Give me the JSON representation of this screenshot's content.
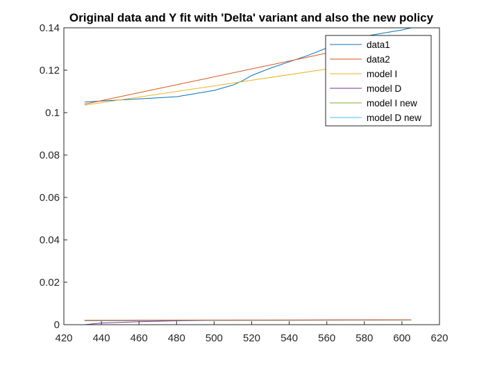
{
  "chart_data": {
    "type": "line",
    "title": "Original data and Y fit with 'Delta' variant and also the new policy",
    "xlabel": "",
    "ylabel": "",
    "xlim": [
      420,
      620
    ],
    "ylim": [
      0,
      0.14
    ],
    "xticks": [
      420,
      440,
      460,
      480,
      500,
      520,
      540,
      560,
      580,
      600,
      620
    ],
    "yticks": [
      0,
      0.02,
      0.04,
      0.06,
      0.08,
      0.1,
      0.12,
      0.14
    ],
    "ytick_labels": [
      "0",
      "0.02",
      "0.04",
      "0.06",
      "0.08",
      "0.1",
      "0.12",
      "0.14"
    ],
    "grid": false,
    "legend_position": "top-right",
    "series": [
      {
        "name": "data1",
        "color": "#0072BD",
        "x": [
          431,
          440,
          460,
          480,
          490,
          500,
          510,
          515,
          520,
          530,
          540,
          550,
          560,
          570,
          580,
          590,
          600,
          605
        ],
        "y": [
          0.105,
          0.1055,
          0.1065,
          0.1075,
          0.109,
          0.1105,
          0.113,
          0.115,
          0.1175,
          0.121,
          0.124,
          0.127,
          0.1305,
          0.1335,
          0.136,
          0.1375,
          0.139,
          0.14
        ]
      },
      {
        "name": "data2",
        "color": "#D95319",
        "x": [
          431,
          605
        ],
        "y": [
          0.104,
          0.1365
        ]
      },
      {
        "name": "model I",
        "color": "#EDB120",
        "x": [
          431,
          605
        ],
        "y": [
          0.1035,
          0.1265
        ]
      },
      {
        "name": "model D",
        "color": "#7E2F8E",
        "x": [
          431,
          440,
          460,
          480,
          500,
          520,
          540,
          560,
          580,
          605
        ],
        "y": [
          0.0,
          0.0008,
          0.0014,
          0.0018,
          0.002,
          0.0021,
          0.0021,
          0.0022,
          0.0022,
          0.0023
        ]
      },
      {
        "name": "model I new",
        "color": "#77AC30",
        "x": [
          431,
          605
        ],
        "y": [
          0.0019,
          0.0022
        ]
      },
      {
        "name": "model D new",
        "color": "#4DBEEE",
        "x": [
          431,
          605
        ],
        "y": [
          0.0019,
          0.0022
        ]
      },
      {
        "name": "",
        "color": "#D95319",
        "x": [
          431,
          605
        ],
        "y": [
          0.0021,
          0.0023
        ]
      }
    ]
  }
}
